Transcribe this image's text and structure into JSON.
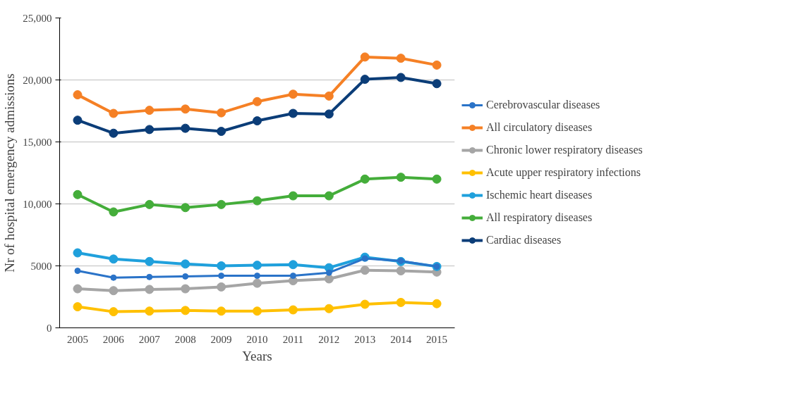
{
  "chart_data": {
    "type": "line",
    "xlabel": "Years",
    "ylabel": "Nr of hospital emergency admissions",
    "categories": [
      "2005",
      "2006",
      "2007",
      "2008",
      "2009",
      "2010",
      "2011",
      "2012",
      "2013",
      "2014",
      "2015"
    ],
    "series": [
      {
        "name": "Cerebrovascular diseases",
        "color": "#2a73c8",
        "values": [
          4600,
          4050,
          4100,
          4150,
          4200,
          4200,
          4200,
          4450,
          5600,
          5400,
          4950
        ]
      },
      {
        "name": "All circulatory diseases",
        "color": "#f58025",
        "values": [
          18800,
          17300,
          17550,
          17650,
          17350,
          18250,
          18850,
          18700,
          21850,
          21750,
          21200
        ]
      },
      {
        "name": "Chronic lower respiratory diseases",
        "color": "#a5a5a5",
        "values": [
          3150,
          3000,
          3100,
          3150,
          3300,
          3600,
          3800,
          3950,
          4650,
          4600,
          4500
        ]
      },
      {
        "name": "Acute upper respiratory infections",
        "color": "#ffc000",
        "values": [
          1700,
          1300,
          1350,
          1400,
          1350,
          1350,
          1450,
          1550,
          1900,
          2050,
          1950
        ]
      },
      {
        "name": "Ischemic heart diseases",
        "color": "#1fa0dc",
        "values": [
          6050,
          5550,
          5350,
          5150,
          5000,
          5050,
          5100,
          4850,
          5700,
          5350,
          4950
        ]
      },
      {
        "name": "All respiratory diseases",
        "color": "#44ad3a",
        "values": [
          10750,
          9350,
          9950,
          9700,
          9950,
          10250,
          10650,
          10650,
          12000,
          12150,
          12000
        ]
      },
      {
        "name": "Cardiac diseases",
        "color": "#0b3d78",
        "values": [
          16750,
          15700,
          16000,
          16100,
          15850,
          16700,
          17300,
          17250,
          20050,
          20200,
          19700
        ]
      }
    ],
    "ylim": [
      0,
      25000
    ],
    "yticks": [
      0,
      5000,
      {
        "value": 10000,
        "label": "10,000"
      },
      {
        "value": 15000,
        "label": "15,000"
      },
      {
        "value": 20000,
        "label": "20,000"
      },
      {
        "value": 25000,
        "label": "25,000"
      }
    ],
    "grid": "y",
    "legend": "right",
    "marker": "circle",
    "line_style": "solid"
  }
}
